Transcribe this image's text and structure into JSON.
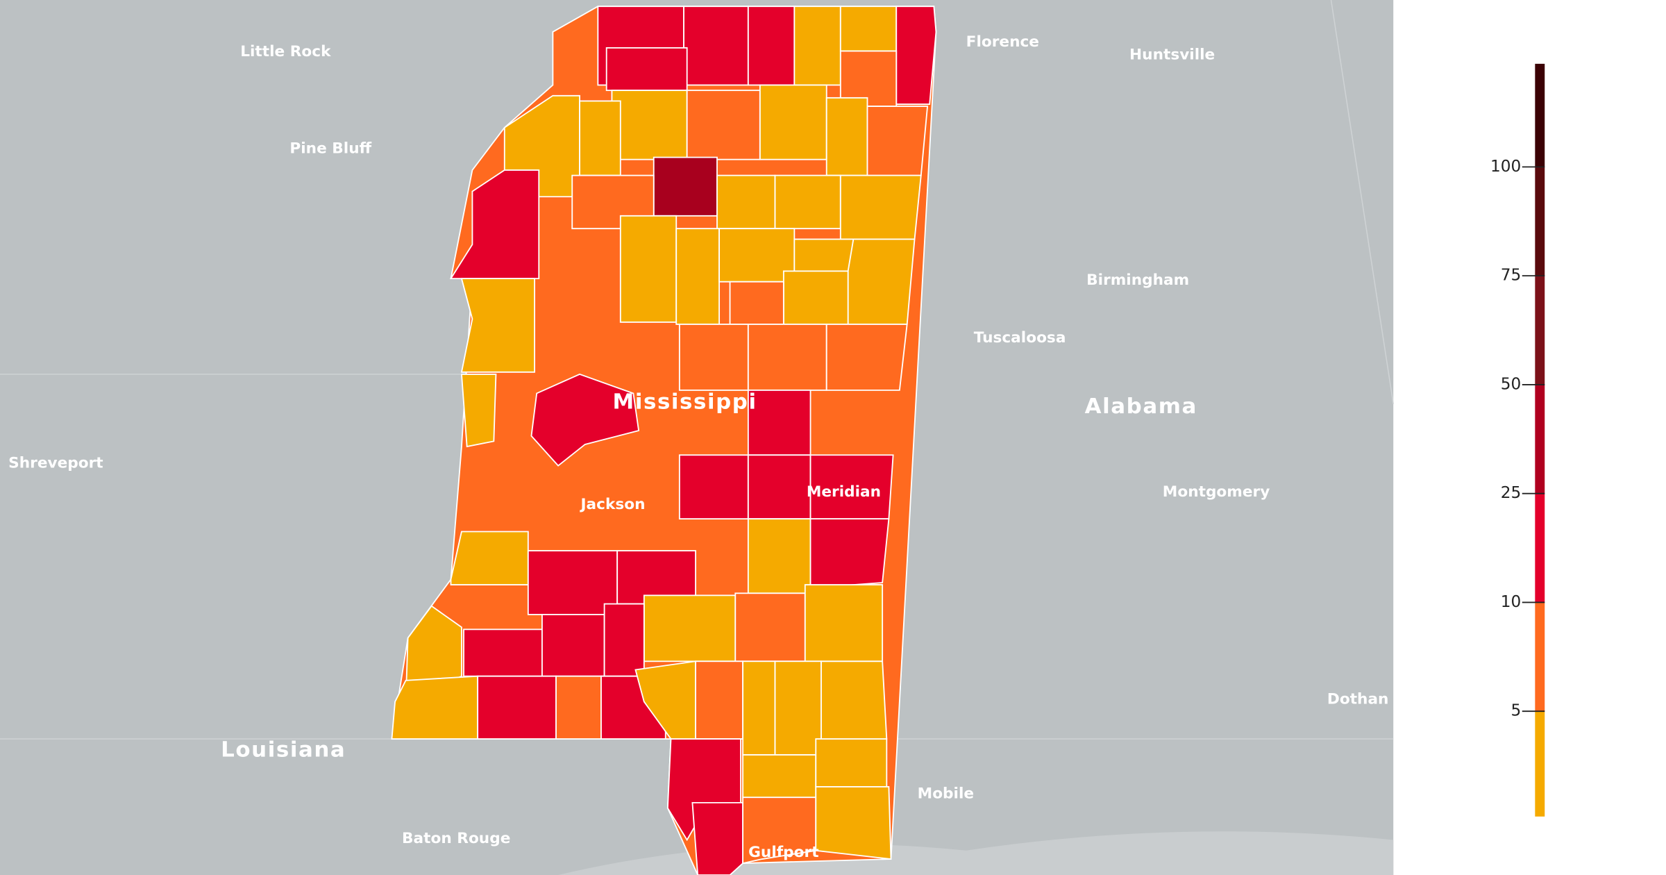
{
  "places": {
    "little_rock": "Little Rock",
    "pine_bluff": "Pine Bluff",
    "shreveport": "Shreveport",
    "louisiana": "Louisiana",
    "baton_rouge": "Baton Rouge",
    "florence": "Florence",
    "huntsville": "Huntsville",
    "birmingham": "Birmingham",
    "tuscaloosa": "Tuscaloosa",
    "alabama": "Alabama",
    "montgomery": "Montgomery",
    "dothan": "Dothan",
    "mobile": "Mobile",
    "mississippi": "Mississippi",
    "jackson": "Jackson",
    "meridian": "Meridian",
    "gulfport": "Gulfport"
  },
  "legend": {
    "ticks": [
      100,
      75,
      50,
      25,
      10,
      5
    ],
    "colors": [
      "#3b0205",
      "#5a0a0d",
      "#7c1119",
      "#b0001f",
      "#e4002b",
      "#ff6a1f",
      "#f5aa00"
    ]
  }
}
